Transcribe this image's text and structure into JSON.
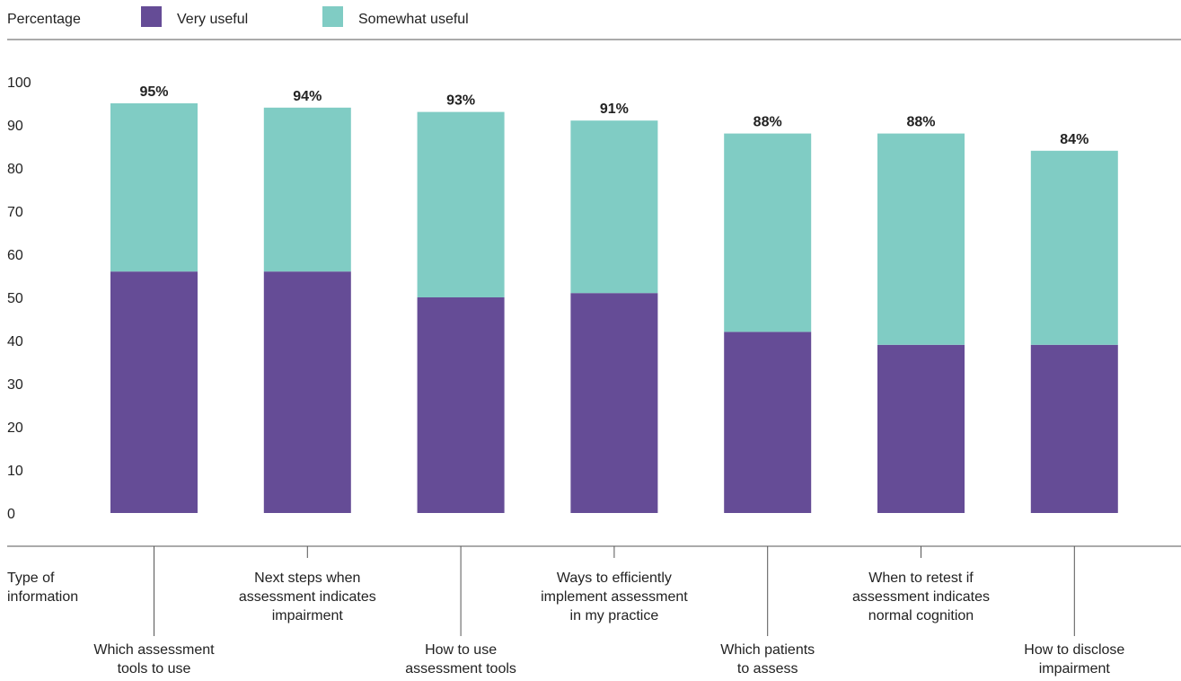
{
  "chart_data": {
    "type": "bar",
    "stacked": true,
    "ylabel": "Percentage",
    "ylim": [
      0,
      100
    ],
    "yticks": [
      0,
      10,
      20,
      30,
      40,
      50,
      60,
      70,
      80,
      90,
      100
    ],
    "grid": false,
    "legend_position": "top-left",
    "xlabel": [
      "Type of",
      "information"
    ],
    "categories": [
      [
        "Which assessment",
        "tools to use"
      ],
      [
        "Next steps when",
        "assessment indicates",
        "impairment"
      ],
      [
        "How to use",
        "assessment tools"
      ],
      [
        "Ways to efficiently",
        "implement assessment",
        "in my practice"
      ],
      [
        "Which patients",
        "to assess"
      ],
      [
        "When to retest if",
        "assessment indicates",
        "normal cognition"
      ],
      [
        "How to disclose",
        "impairment"
      ]
    ],
    "series": [
      {
        "name": "Very useful",
        "color": "#654c96",
        "values": [
          56,
          56,
          50,
          51,
          42,
          39,
          39
        ]
      },
      {
        "name": "Somewhat useful",
        "color": "#80ccc4",
        "values": [
          39,
          38,
          43,
          40,
          46,
          49,
          45
        ]
      }
    ],
    "totals": [
      95,
      94,
      93,
      91,
      88,
      88,
      84
    ],
    "total_labels": [
      "95%",
      "94%",
      "93%",
      "91%",
      "88%",
      "88%",
      "84%"
    ]
  }
}
